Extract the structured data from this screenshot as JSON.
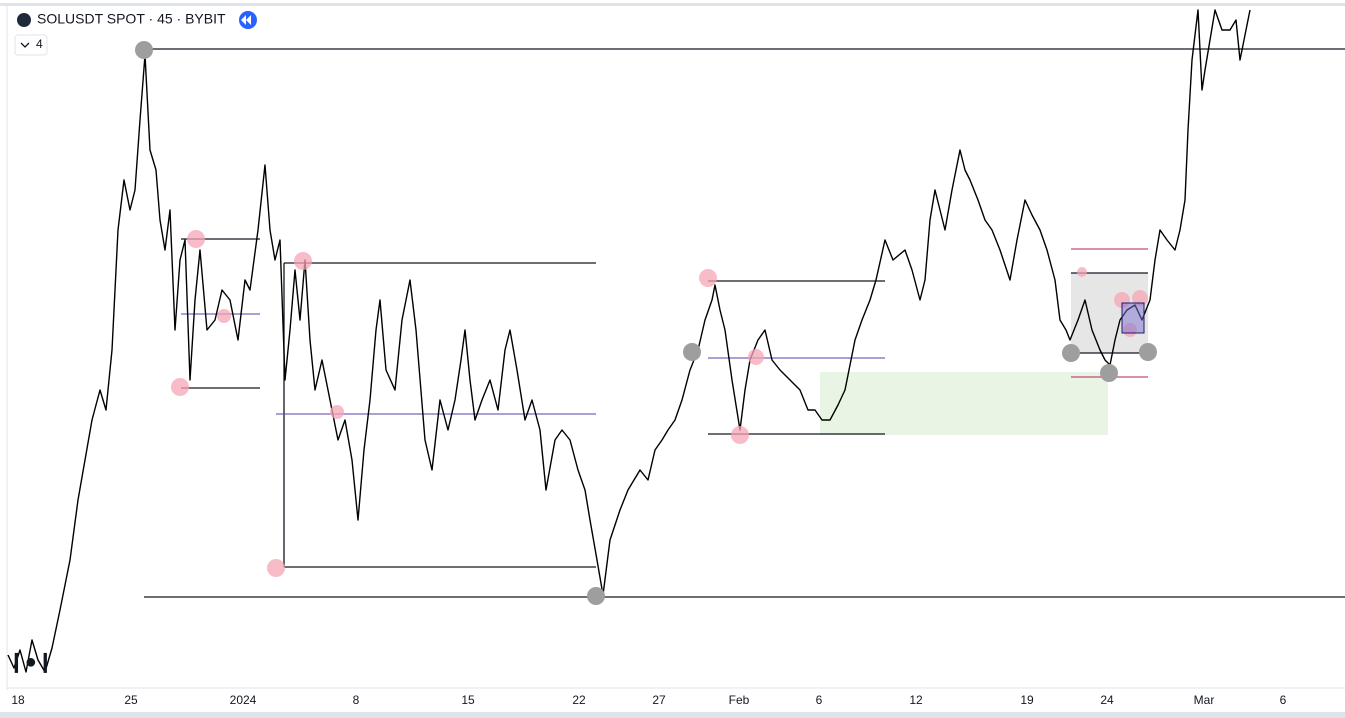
{
  "header": {
    "title": "SOLUSDT SPOT · 45 · BYBIT",
    "indicator_count": "4"
  },
  "x_axis": {
    "labels": [
      "18",
      "25",
      "2024",
      "8",
      "15",
      "22",
      "27",
      "Feb",
      "6",
      "12",
      "19",
      "24",
      "Mar",
      "6"
    ]
  }
}
